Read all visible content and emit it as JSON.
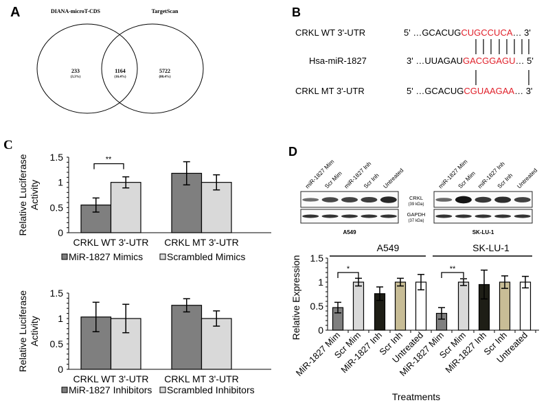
{
  "colors": {
    "dark_gray": "#7f7f7f",
    "light_gray": "#d9d9d9",
    "black_bar": "#1e1e16",
    "tan": "#c8bd96",
    "white": "#ffffff",
    "red_seq": "#e0202a"
  },
  "panel_a": {
    "label": "A",
    "sets": [
      {
        "name": "DIANA-microT-CDS"
      },
      {
        "name": "TargetScan"
      }
    ],
    "regions": [
      {
        "count": "233",
        "pct": "(3.3%)"
      },
      {
        "count": "1164",
        "pct": "(16.4%)"
      },
      {
        "count": "5722",
        "pct": "(80.4%)"
      }
    ]
  },
  "panel_b": {
    "label": "B",
    "rows": [
      {
        "name": "CRKL WT 3'-UTR",
        "prefix": "5' …GCACUG",
        "red": "CUGCCUCA",
        "suffix": "… 3'"
      },
      {
        "name": "Hsa-miR-1827",
        "prefix": "3' …UUAGAU",
        "red": "GACGGAGU",
        "suffix": "… 5'"
      },
      {
        "name": "CRKL MT 3'-UTR",
        "prefix": "5' …GCACUG",
        "red": "CGUAAGAA",
        "suffix": "… 3'"
      }
    ]
  },
  "panel_c_label": "C",
  "panel_d": {
    "label": "D",
    "blot_lanes": [
      "miR-1827 Mim",
      "Scr Mim",
      "miR-1827 Inh",
      "Scr Inh",
      "Untreated"
    ],
    "blot_proteins": [
      {
        "name": "CRKL",
        "size": "(39 kDa)"
      },
      {
        "name": "GAPDH",
        "size": "(37 kDa)"
      }
    ],
    "blot_cells": [
      "A549",
      "SK-LU-1"
    ]
  },
  "chart_data": [
    {
      "type": "bar",
      "ylabel": "Relative Luciferase Activity",
      "ylim": [
        0,
        1.5
      ],
      "yticks": [
        "0",
        "0.5",
        "1",
        "1.5"
      ],
      "categories": [
        "CRKL WT 3'-UTR",
        "CRKL MT 3'-UTR"
      ],
      "series": [
        {
          "name": "MiR-1827 Mimics",
          "color": "#7f7f7f",
          "values": [
            0.55,
            1.18
          ],
          "errors": [
            0.14,
            0.23
          ]
        },
        {
          "name": "Scrambled Mimics",
          "color": "#d9d9d9",
          "values": [
            1.0,
            1.0
          ],
          "errors": [
            0.11,
            0.15
          ]
        }
      ],
      "annotations": [
        {
          "text": "**",
          "between": "CRKL WT 3'-UTR bars"
        }
      ],
      "legend": "bottom"
    },
    {
      "type": "bar",
      "ylabel": "Relative Luciferase Activity",
      "ylim": [
        0,
        1.5
      ],
      "yticks": [
        "0",
        "0.5",
        "1",
        "1.5"
      ],
      "categories": [
        "CRKL WT 3'-UTR",
        "CRKL MT 3'-UTR"
      ],
      "series": [
        {
          "name": "MiR-1827 Inhibitors",
          "color": "#7f7f7f",
          "values": [
            1.03,
            1.26
          ],
          "errors": [
            0.29,
            0.13
          ]
        },
        {
          "name": "Scrambled Inhibitors",
          "color": "#d9d9d9",
          "values": [
            1.0,
            1.0
          ],
          "errors": [
            0.28,
            0.15
          ]
        }
      ],
      "legend": "bottom"
    },
    {
      "type": "bar",
      "ylabel": "Relative Expression",
      "xlabel": "Treatments",
      "ylim": [
        0,
        1.5
      ],
      "yticks": [
        "0",
        "0.5",
        "1",
        "1.5"
      ],
      "groups": [
        "A549",
        "SK-LU-1"
      ],
      "categories": [
        "MiR-1827 Mim",
        "Scr Mim",
        "MiR-1827 Inh",
        "Scr Inh",
        "Untreated",
        "MiR-1827 Mim",
        "Scr Mim",
        "MiR-1827 Inh",
        "Scr Inh",
        "Untreated"
      ],
      "values": [
        0.47,
        1.0,
        0.76,
        1.0,
        1.0,
        0.35,
        1.0,
        0.95,
        1.0,
        1.0
      ],
      "errors": [
        0.11,
        0.08,
        0.14,
        0.08,
        0.16,
        0.12,
        0.07,
        0.3,
        0.13,
        0.12
      ],
      "bar_colors": [
        "#7f7f7f",
        "#d9d9d9",
        "#1e1e16",
        "#c8bd96",
        "#ffffff",
        "#7f7f7f",
        "#d9d9d9",
        "#1e1e16",
        "#c8bd96",
        "#ffffff"
      ],
      "annotations": [
        {
          "text": "*",
          "group": "A549"
        },
        {
          "text": "**",
          "group": "SK-LU-1"
        }
      ]
    }
  ]
}
